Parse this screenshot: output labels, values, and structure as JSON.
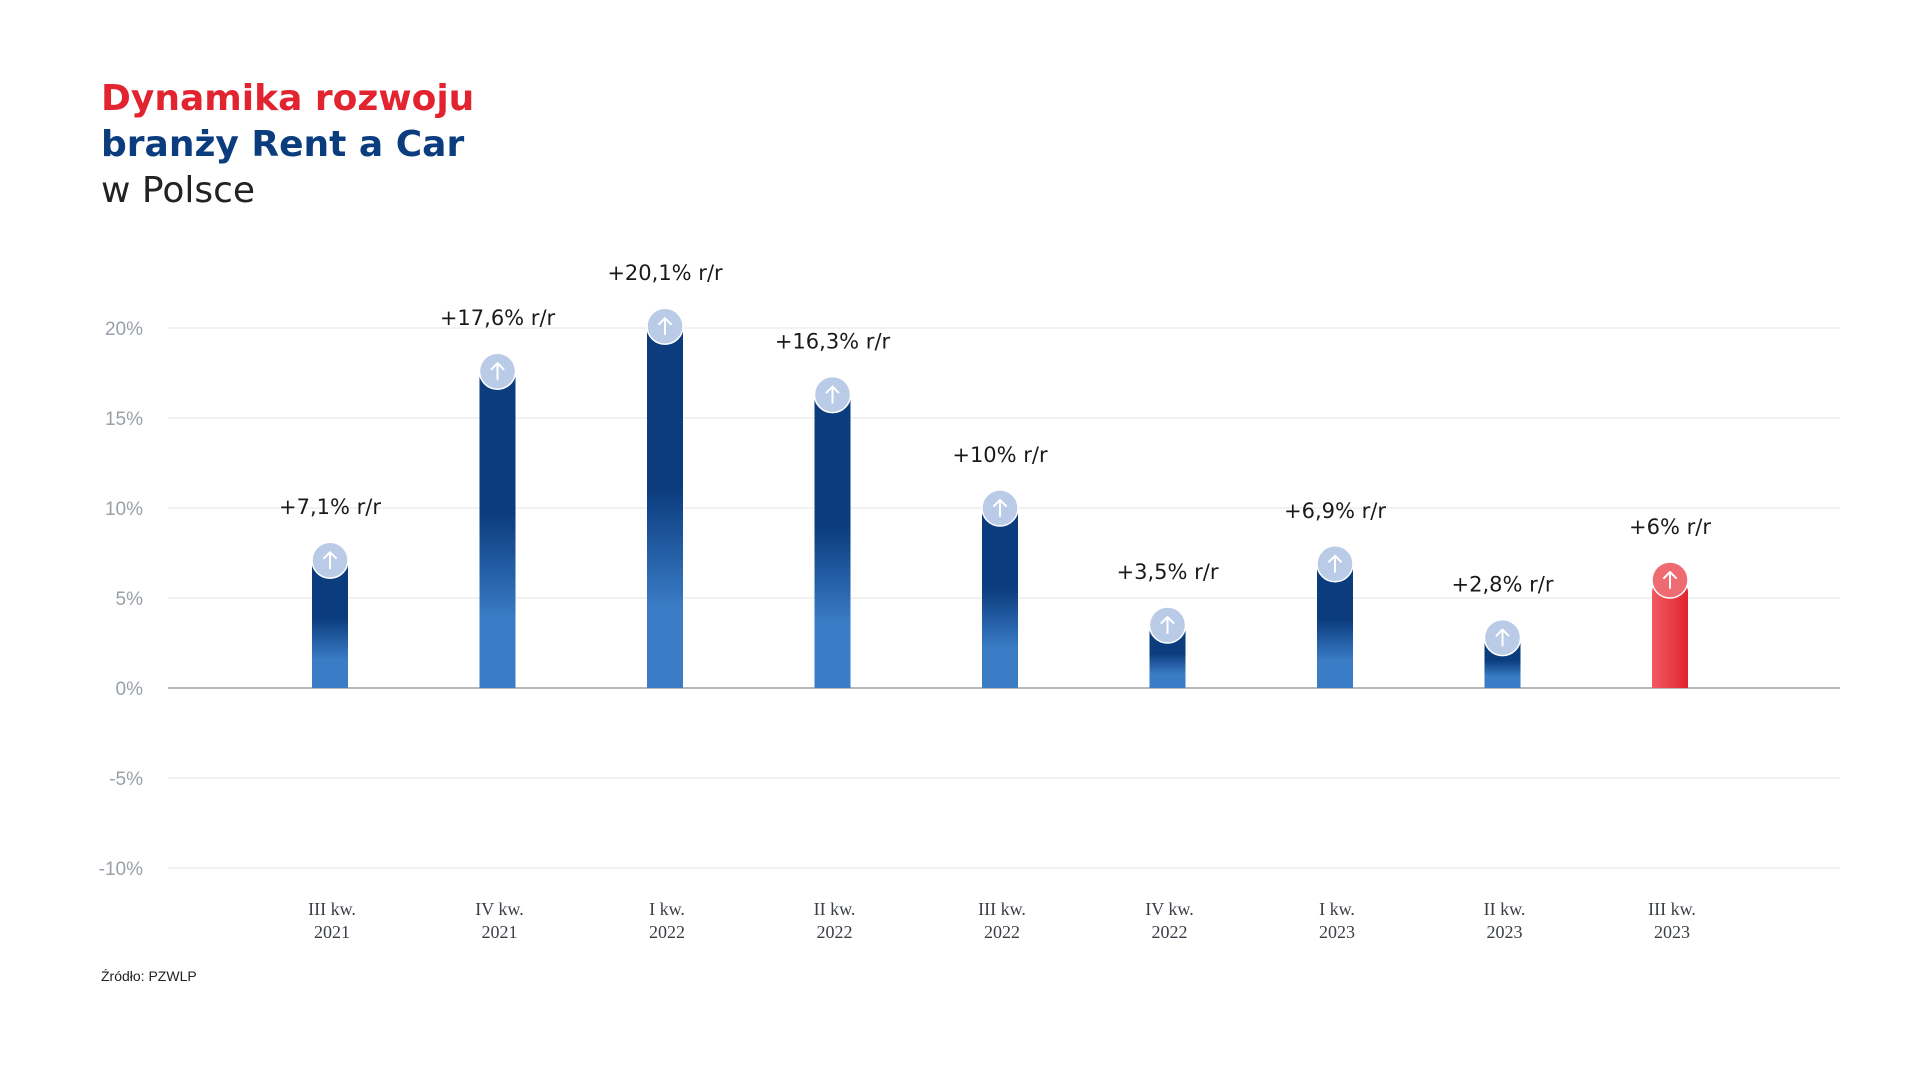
{
  "header": {
    "title_line1": "Dynamika rozwoju",
    "title_line2": "branży Rent a Car",
    "title_line3": "w Polsce"
  },
  "source": "Źródło: PZWLP",
  "colors": {
    "title_red": "#e1242f",
    "title_blue": "#0b3c7e",
    "bar_blue_dark": "#0b3c7e",
    "bar_blue_light": "#3a7cc6",
    "bar_red": "#e8323d",
    "bubble": "#b9cbe6",
    "grid": "#e6e6e6",
    "axis_zero": "#b8b8b8"
  },
  "chart_data": {
    "type": "bar",
    "categories": [
      [
        "III kw.",
        "2021"
      ],
      [
        "IV kw.",
        "2021"
      ],
      [
        "I kw.",
        "2022"
      ],
      [
        "II kw.",
        "2022"
      ],
      [
        "III kw.",
        "2022"
      ],
      [
        "IV kw.",
        "2022"
      ],
      [
        "I kw.",
        "2023"
      ],
      [
        "II kw.",
        "2023"
      ],
      [
        "III kw.",
        "2023"
      ]
    ],
    "values": [
      7.1,
      17.6,
      20.1,
      16.3,
      10,
      3.5,
      6.9,
      2.8,
      6
    ],
    "data_labels": [
      "+7,1% r/r",
      "+17,6% r/r",
      "+20,1% r/r",
      "+16,3% r/r",
      "+10% r/r",
      "+3,5% r/r",
      "+6,9% r/r",
      "+2,8% r/r",
      "+6% r/r"
    ],
    "highlight_index": 8,
    "ylim": [
      -10,
      20
    ],
    "yticks": [
      20,
      15,
      10,
      5,
      0,
      -5,
      -10
    ],
    "ytick_labels": [
      "20%",
      "15%",
      "10%",
      "5%",
      "0%",
      "-5%",
      "-10%"
    ],
    "title": "",
    "xlabel": "",
    "ylabel": "",
    "grid": true,
    "legend": "none",
    "marker_icon": "arrow-up-icon"
  }
}
